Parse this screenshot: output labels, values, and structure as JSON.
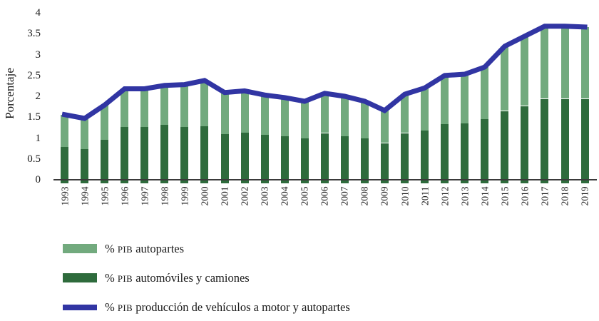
{
  "chart_data": {
    "type": "bar",
    "subtype": "stacked-bars-with-line-overlay",
    "categories": [
      1993,
      1994,
      1995,
      1996,
      1997,
      1998,
      1999,
      2000,
      2001,
      2002,
      2003,
      2004,
      2005,
      2006,
      2007,
      2008,
      2009,
      2010,
      2011,
      2012,
      2013,
      2014,
      2015,
      2016,
      2017,
      2018,
      2019
    ],
    "series": [
      {
        "name": "% PIB autopartes",
        "role": "bar-upper-segment",
        "color": "#72aa7e",
        "values": [
          0.78,
          0.73,
          0.84,
          0.92,
          0.92,
          0.95,
          1.02,
          1.1,
          0.99,
          1.0,
          0.95,
          0.93,
          0.88,
          0.95,
          0.95,
          0.88,
          0.78,
          0.93,
          1.02,
          1.16,
          1.18,
          1.25,
          1.55,
          1.67,
          1.74,
          1.74,
          1.72
        ]
      },
      {
        "name": "% PIB automóviles y camiones",
        "role": "bar-lower-segment",
        "color": "#2e6b3c",
        "values": [
          0.78,
          0.74,
          0.95,
          1.26,
          1.26,
          1.31,
          1.26,
          1.28,
          1.1,
          1.13,
          1.08,
          1.04,
          1.0,
          1.12,
          1.05,
          1.0,
          0.88,
          1.12,
          1.18,
          1.34,
          1.35,
          1.45,
          1.65,
          1.77,
          1.94,
          1.94,
          1.94
        ]
      },
      {
        "name": "% PIB producción de vehículos a motor y autopartes",
        "role": "line",
        "color": "#3135a3",
        "values": [
          1.56,
          1.47,
          1.79,
          2.18,
          2.18,
          2.26,
          2.28,
          2.38,
          2.09,
          2.13,
          2.03,
          1.97,
          1.88,
          2.07,
          2.0,
          1.88,
          1.66,
          2.05,
          2.2,
          2.5,
          2.53,
          2.7,
          3.2,
          3.44,
          3.68,
          3.68,
          3.66
        ]
      }
    ],
    "title": "",
    "xlabel": "",
    "ylabel": "Porcentaje",
    "ylim": [
      0,
      4
    ],
    "yticks": [
      0,
      0.5,
      1,
      1.5,
      2,
      2.5,
      3,
      3.5,
      4
    ],
    "grid": false,
    "legend_position": "bottom-left",
    "axis_color": "#3a3a3a"
  },
  "legend": {
    "items": [
      {
        "pre": "% ",
        "acronym": "PIB",
        "rest": " autopartes"
      },
      {
        "pre": "% ",
        "acronym": "PIB",
        "rest": " automóviles y camiones"
      },
      {
        "pre": "% ",
        "acronym": "PIB",
        "rest": " producción de vehículos a motor y autopartes"
      }
    ]
  }
}
